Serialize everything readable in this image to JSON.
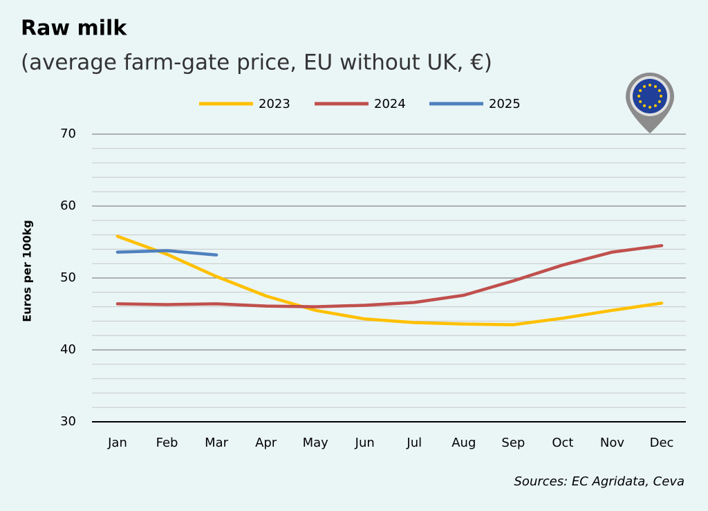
{
  "chart_data": {
    "type": "line",
    "title": "Raw milk",
    "subtitle": "(average farm-gate price, EU without UK, €)",
    "y_label": "Euros per 100kg",
    "source": "Sources: EC Agridata, Ceva",
    "categories": [
      "Jan",
      "Feb",
      "Mar",
      "Apr",
      "May",
      "Jun",
      "Jul",
      "Aug",
      "Sep",
      "Oct",
      "Nov",
      "Dec"
    ],
    "series": [
      {
        "name": "2023",
        "color": "#ffc000",
        "values": [
          55.8,
          53.3,
          50.2,
          47.5,
          45.5,
          44.3,
          43.8,
          43.6,
          43.5,
          44.4,
          45.5,
          46.5
        ]
      },
      {
        "name": "2024",
        "color": "#c0504d",
        "values": [
          46.4,
          46.3,
          46.4,
          46.1,
          46.0,
          46.2,
          46.6,
          47.6,
          49.6,
          51.8,
          53.6,
          54.5
        ]
      },
      {
        "name": "2025",
        "color": "#4f81bd",
        "values": [
          53.6,
          53.8,
          53.2,
          null,
          null,
          null,
          null,
          null,
          null,
          null,
          null,
          null
        ]
      }
    ],
    "ylim": [
      30,
      70
    ],
    "yticks": [
      30,
      40,
      50,
      60,
      70
    ],
    "yminor_ticks": [
      32,
      34,
      36,
      38,
      42,
      44,
      46,
      48,
      52,
      54,
      56,
      58,
      62,
      64,
      66,
      68
    ],
    "grid": true,
    "legend": "top"
  }
}
